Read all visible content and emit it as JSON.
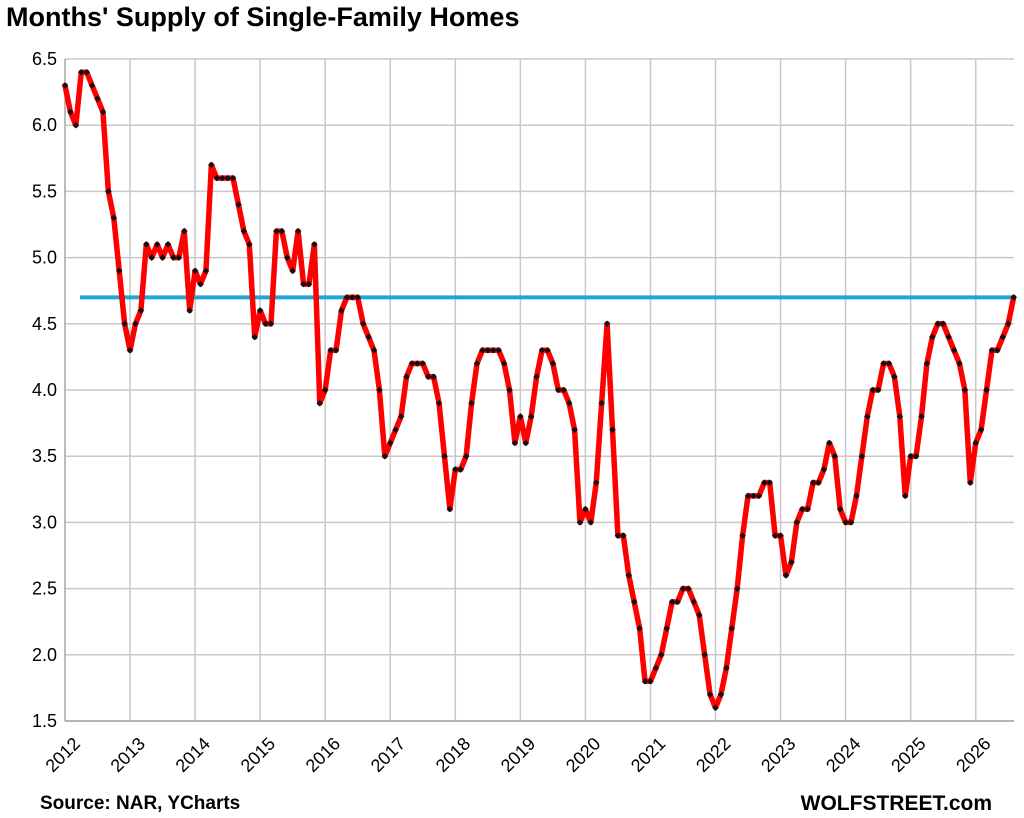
{
  "chart_data": {
    "type": "line",
    "title": "Months' Supply of Single-Family Homes",
    "source": "Source: NAR, YCharts",
    "brand": "WOLFSTREET.com",
    "xlabel": "",
    "ylabel": "",
    "ylim": [
      1.5,
      6.5
    ],
    "y_ticks": [
      "1.5",
      "2.0",
      "2.5",
      "3.0",
      "3.5",
      "4.0",
      "4.5",
      "5.0",
      "5.5",
      "6.0",
      "6.5"
    ],
    "x_ticks": [
      "2012",
      "2013",
      "2014",
      "2015",
      "2016",
      "2017",
      "2018",
      "2019",
      "2020",
      "2021",
      "2022",
      "2023",
      "2024",
      "2025",
      "2026"
    ],
    "grid": true,
    "legend": "none",
    "x_start": "2012-01",
    "colors": {
      "series": "#ff0000",
      "marker": "#111111",
      "reference": "#1ea7d6",
      "grid": "#c8c8c8"
    },
    "reference_line": {
      "value": 4.7
    },
    "series": [
      {
        "values": [
          6.3,
          6.1,
          6.0,
          6.4,
          6.4,
          6.3,
          6.2,
          6.1,
          5.5,
          5.3,
          4.9,
          4.5,
          4.3,
          4.5,
          4.6,
          5.1,
          5.0,
          5.1,
          5.0,
          5.1,
          5.0,
          5.0,
          5.2,
          4.6,
          4.9,
          4.8,
          4.9,
          5.7,
          5.6,
          5.6,
          5.6,
          5.6,
          5.4,
          5.2,
          5.1,
          4.4,
          4.6,
          4.5,
          4.5,
          5.2,
          5.2,
          5.0,
          4.9,
          5.2,
          4.8,
          4.8,
          5.1,
          3.9,
          4.0,
          4.3,
          4.3,
          4.6,
          4.7,
          4.7,
          4.7,
          4.5,
          4.4,
          4.3,
          4.0,
          3.5,
          3.6,
          3.7,
          3.8,
          4.1,
          4.2,
          4.2,
          4.2,
          4.1,
          4.1,
          3.9,
          3.5,
          3.1,
          3.4,
          3.4,
          3.5,
          3.9,
          4.2,
          4.3,
          4.3,
          4.3,
          4.3,
          4.2,
          4.0,
          3.6,
          3.8,
          3.6,
          3.8,
          4.1,
          4.3,
          4.3,
          4.2,
          4.0,
          4.0,
          3.9,
          3.7,
          3.0,
          3.1,
          3.0,
          3.3,
          3.9,
          4.5,
          3.7,
          2.9,
          2.9,
          2.6,
          2.4,
          2.2,
          1.8,
          1.8,
          1.9,
          2.0,
          2.2,
          2.4,
          2.4,
          2.5,
          2.5,
          2.4,
          2.3,
          2.0,
          1.7,
          1.6,
          1.7,
          1.9,
          2.2,
          2.5,
          2.9,
          3.2,
          3.2,
          3.2,
          3.3,
          3.3,
          2.9,
          2.9,
          2.6,
          2.7,
          3.0,
          3.1,
          3.1,
          3.3,
          3.3,
          3.4,
          3.6,
          3.5,
          3.1,
          3.0,
          3.0,
          3.2,
          3.5,
          3.8,
          4.0,
          4.0,
          4.2,
          4.2,
          4.1,
          3.8,
          3.2,
          3.5,
          3.5,
          3.8,
          4.2,
          4.4,
          4.5,
          4.5,
          4.4,
          4.3,
          4.2,
          4.0,
          3.3,
          3.6,
          3.7,
          4.0,
          4.3,
          4.3,
          4.4,
          4.5,
          4.7
        ]
      }
    ]
  }
}
